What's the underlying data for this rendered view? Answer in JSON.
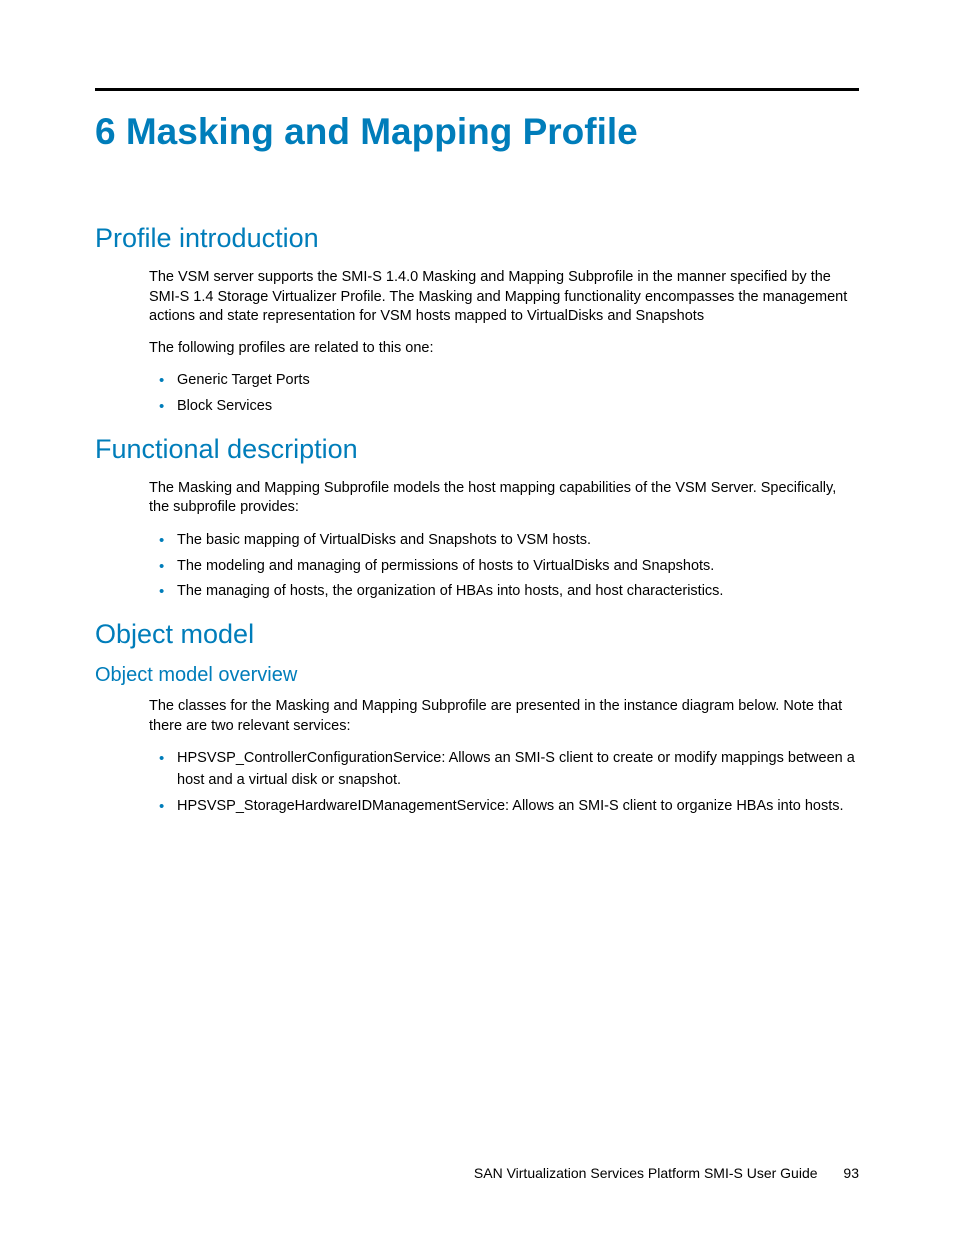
{
  "colors": {
    "accent": "#007dba",
    "text": "#000000",
    "background": "#ffffff",
    "rule": "#000000"
  },
  "typography": {
    "chapter_title_pt": 37,
    "h2_pt": 27,
    "h3_pt": 20,
    "body_pt": 14.5,
    "footer_pt": 14,
    "font_family": "Arial, Helvetica, sans-serif"
  },
  "chapter": {
    "title": "6 Masking and Mapping Profile"
  },
  "sections": {
    "profile_intro": {
      "heading": "Profile introduction",
      "para1": "The VSM server supports the SMI-S 1.4.0 Masking and Mapping Subprofile in the manner specified by the SMI-S 1.4 Storage Virtualizer Profile. The Masking and Mapping functionality encompasses the management actions and state representation for VSM hosts mapped to VirtualDisks and Snapshots",
      "para2": "The following profiles are related to this one:",
      "bullets": [
        "Generic Target Ports",
        "Block Services"
      ]
    },
    "functional_desc": {
      "heading": "Functional description",
      "para1": "The Masking and Mapping Subprofile models the host mapping capabilities of the VSM Server. Specifically, the subprofile provides:",
      "bullets": [
        "The basic mapping of VirtualDisks and Snapshots to VSM hosts.",
        "The modeling and managing of permissions of hosts to VirtualDisks and Snapshots.",
        "The managing of hosts, the organization of HBAs into hosts, and host characteristics."
      ]
    },
    "object_model": {
      "heading": "Object model",
      "overview_heading": "Object model overview",
      "para1": "The classes for the Masking and Mapping Subprofile are presented in the instance diagram below. Note that there are two relevant services:",
      "bullets": [
        "HPSVSP_ControllerConfigurationService: Allows an SMI-S client to create or modify mappings between a host and a virtual disk or snapshot.",
        "HPSVSP_StorageHardwareIDManagementService: Allows an SMI-S client to organize HBAs into hosts."
      ]
    }
  },
  "footer": {
    "doc_title": "SAN Virtualization Services Platform SMI-S User Guide",
    "page_number": "93"
  }
}
